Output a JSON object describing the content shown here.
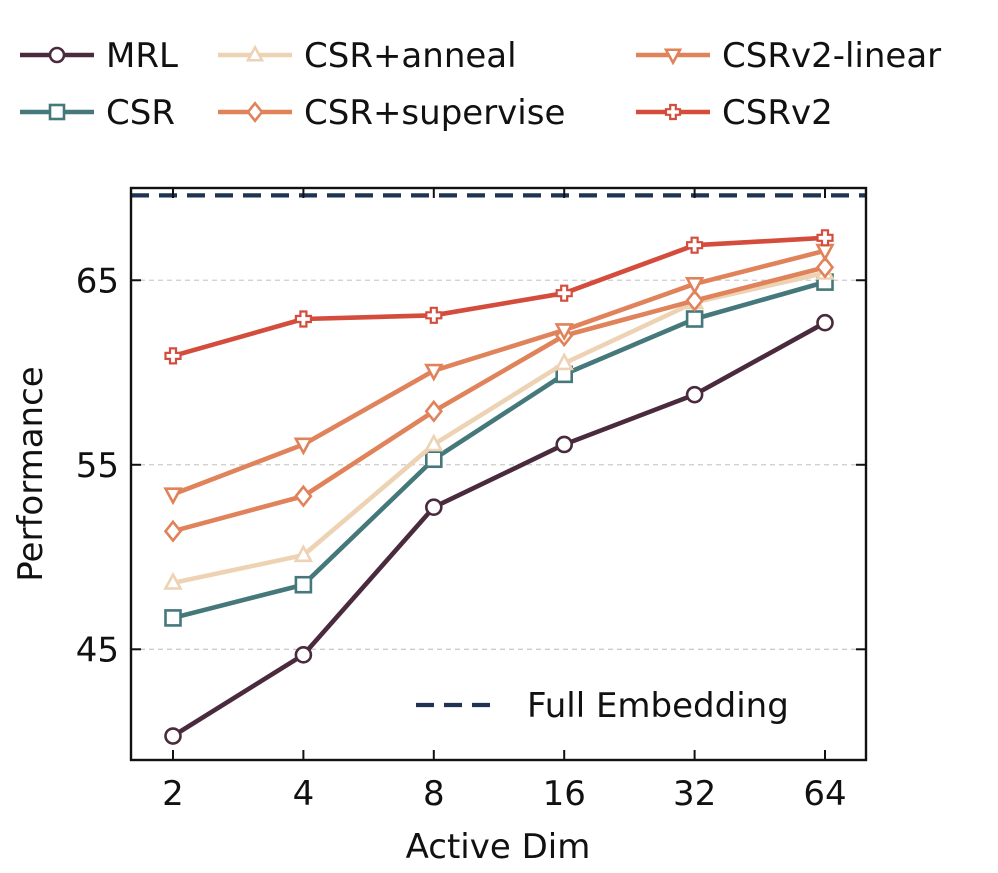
{
  "chart_data": {
    "type": "line",
    "xlabel": "Active Dim",
    "ylabel": "Performance",
    "categories": [
      "2",
      "4",
      "8",
      "16",
      "32",
      "64"
    ],
    "ylim": [
      39,
      70
    ],
    "yticks": [
      "45",
      "55",
      "65"
    ],
    "grid": "horizontal dashed",
    "series": [
      {
        "name": "MRL",
        "color": "#4a2a3d",
        "marker": "circle",
        "values": [
          40.3,
          44.7,
          52.7,
          56.1,
          58.8,
          62.7
        ]
      },
      {
        "name": "CSR",
        "color": "#45787a",
        "marker": "square",
        "values": [
          46.7,
          48.5,
          55.3,
          59.9,
          62.9,
          64.9
        ]
      },
      {
        "name": "CSR+anneal",
        "color": "#edd3b4",
        "marker": "triangle-up",
        "values": [
          48.6,
          50.1,
          56.1,
          60.5,
          63.8,
          65.4
        ]
      },
      {
        "name": "CSR+supervise",
        "color": "#e0825a",
        "marker": "diamond",
        "values": [
          51.4,
          53.3,
          57.9,
          62.0,
          63.9,
          65.7
        ]
      },
      {
        "name": "CSRv2-linear",
        "color": "#e0825a",
        "marker": "triangle-down",
        "values": [
          53.4,
          56.1,
          60.1,
          62.3,
          64.8,
          66.6
        ]
      },
      {
        "name": "CSRv2",
        "color": "#d44c3c",
        "marker": "plus",
        "values": [
          60.9,
          62.9,
          63.1,
          64.3,
          66.9,
          67.3
        ]
      }
    ],
    "reference_line": {
      "name": "Full Embedding",
      "value": 69.6,
      "color": "#1f3352"
    },
    "legend_position": "top"
  }
}
